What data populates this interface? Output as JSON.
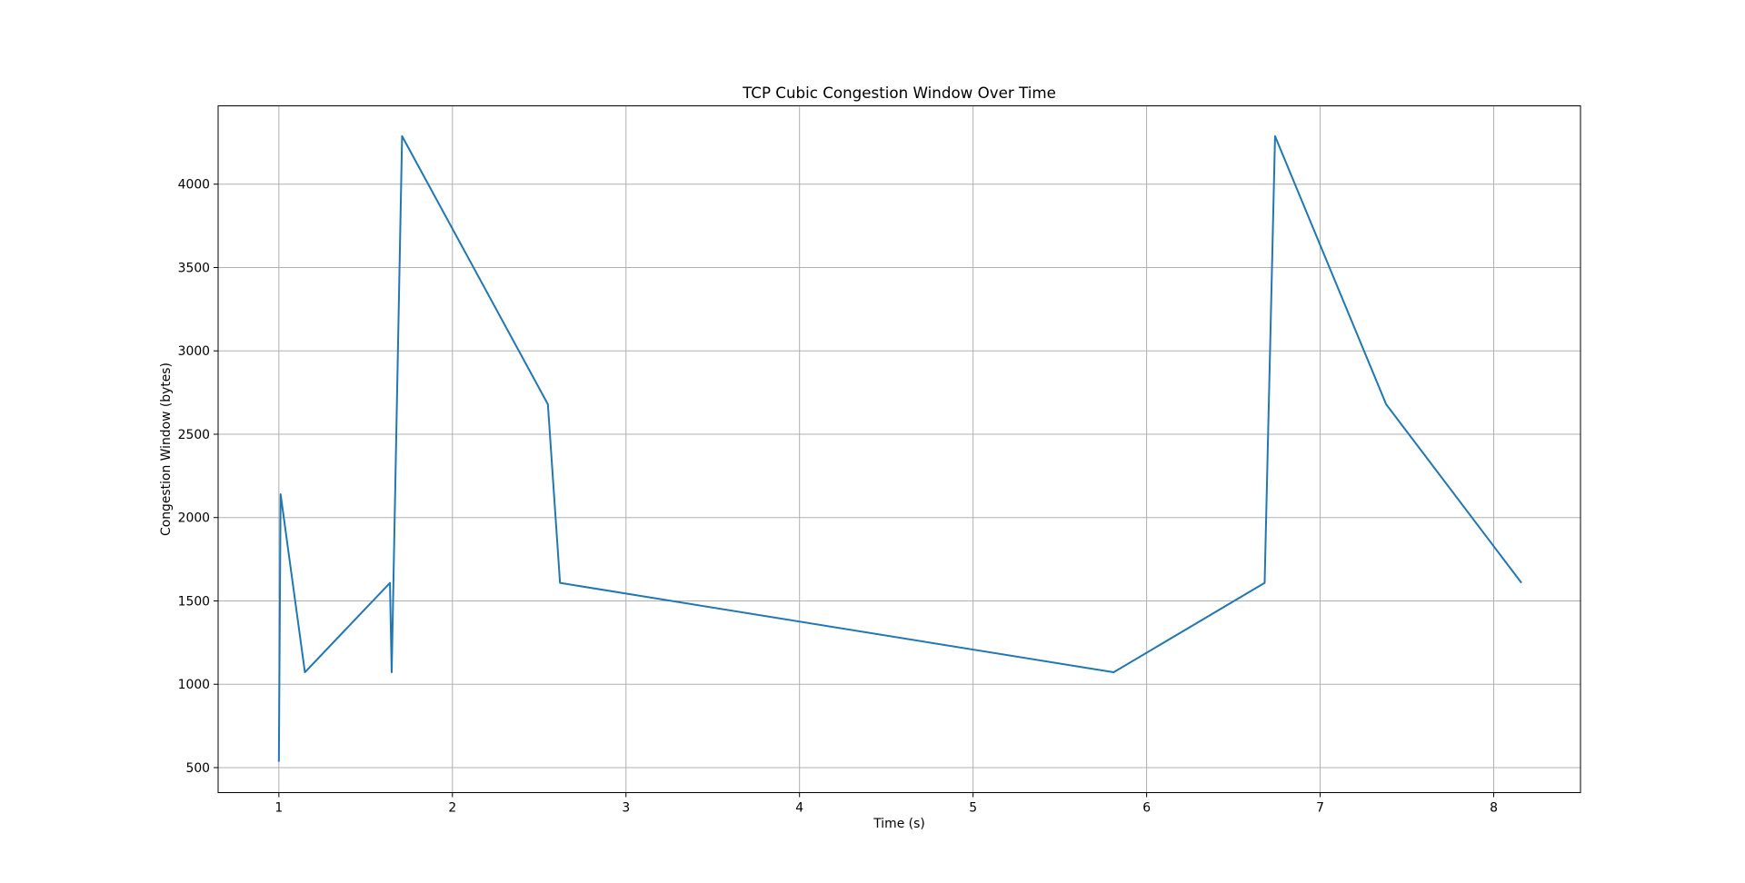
{
  "chart_data": {
    "type": "line",
    "title": "TCP Cubic Congestion Window Over Time",
    "xlabel": "Time (s)",
    "ylabel": "Congestion Window (bytes)",
    "xlim": [
      0.65,
      8.5
    ],
    "ylim": [
      350,
      4470
    ],
    "xticks": [
      1,
      2,
      3,
      4,
      5,
      6,
      7,
      8
    ],
    "yticks": [
      500,
      1000,
      1500,
      2000,
      2500,
      3000,
      3500,
      4000
    ],
    "grid": true,
    "legend": false,
    "series": [
      {
        "color": "#1f77b4",
        "x": [
          1.0,
          1.01,
          1.15,
          1.64,
          1.65,
          1.71,
          2.55,
          2.62,
          5.81,
          6.68,
          6.74,
          7.38,
          8.16
        ],
        "y": [
          535,
          2140,
          1072,
          1608,
          1072,
          4288,
          2680,
          1608,
          1072,
          1608,
          4288,
          2680,
          1608
        ]
      }
    ]
  }
}
